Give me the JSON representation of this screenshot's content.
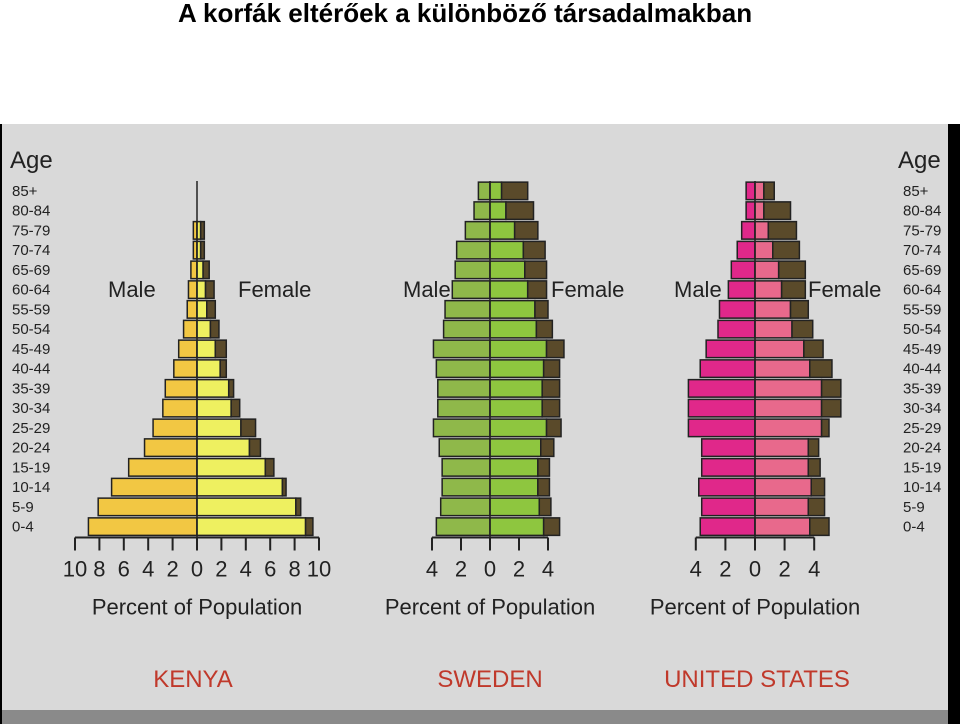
{
  "title": "A korfák eltérőek a különböző társadalmakban",
  "chart_data": {
    "type": "bar",
    "age_axis_title": "Age",
    "age_groups": [
      "85+",
      "80-84",
      "75-79",
      "70-74",
      "65-69",
      "60-64",
      "55-59",
      "50-54",
      "45-49",
      "40-44",
      "35-39",
      "30-34",
      "25-29",
      "20-24",
      "15-19",
      "10-14",
      "5-9",
      "0-4"
    ],
    "male_label": "Male",
    "female_label": "Female",
    "xlabel": "Percent of Population",
    "pyramids": [
      {
        "country": "KENYA",
        "male_color": "#f2c743",
        "female_color": "#eef060",
        "surplus_color": "#5a4a2a",
        "x_ticks": [
          "10",
          "8",
          "6",
          "4",
          "2",
          "0",
          "2",
          "4",
          "6",
          "8",
          "10"
        ],
        "xlim": [
          -10,
          10
        ],
        "male": [
          0,
          0,
          0.3,
          0.3,
          0.5,
          0.7,
          0.8,
          1.1,
          1.5,
          1.9,
          2.6,
          2.8,
          3.6,
          4.3,
          5.6,
          7.0,
          8.1,
          8.9
        ],
        "female": [
          0,
          0,
          0.6,
          0.6,
          1.0,
          1.4,
          1.5,
          1.8,
          2.4,
          2.4,
          3.0,
          3.5,
          4.8,
          5.2,
          6.3,
          7.3,
          8.5,
          9.5
        ]
      },
      {
        "country": "SWEDEN",
        "male_color": "#8fb84a",
        "female_color": "#8ec63f",
        "surplus_color": "#5a4a2a",
        "x_ticks": [
          "4",
          "2",
          "0",
          "2",
          "4"
        ],
        "xlim": [
          -4,
          4
        ],
        "male": [
          0.8,
          1.1,
          1.7,
          2.3,
          2.4,
          2.6,
          3.1,
          3.2,
          3.9,
          3.7,
          3.6,
          3.6,
          3.9,
          3.5,
          3.3,
          3.3,
          3.4,
          3.7
        ],
        "female": [
          2.6,
          3.0,
          3.3,
          3.8,
          3.9,
          3.9,
          4.0,
          4.3,
          5.1,
          4.8,
          4.8,
          4.8,
          4.9,
          4.4,
          4.1,
          4.1,
          4.2,
          4.8
        ]
      },
      {
        "country": "UNITED STATES",
        "male_color": "#e0288a",
        "female_color": "#e8698c",
        "surplus_color": "#5a4a2a",
        "x_ticks": [
          "4",
          "2",
          "0",
          "2",
          "4"
        ],
        "xlim": [
          -4,
          4
        ],
        "male": [
          0.6,
          0.6,
          0.9,
          1.2,
          1.6,
          1.8,
          2.4,
          2.5,
          3.3,
          3.7,
          4.5,
          4.5,
          4.5,
          3.6,
          3.6,
          3.8,
          3.6,
          3.7
        ],
        "female": [
          1.3,
          2.4,
          2.8,
          3.0,
          3.4,
          3.4,
          3.6,
          3.9,
          4.6,
          5.2,
          5.8,
          5.8,
          5.0,
          4.3,
          4.4,
          4.7,
          4.7,
          5.0
        ]
      }
    ]
  }
}
